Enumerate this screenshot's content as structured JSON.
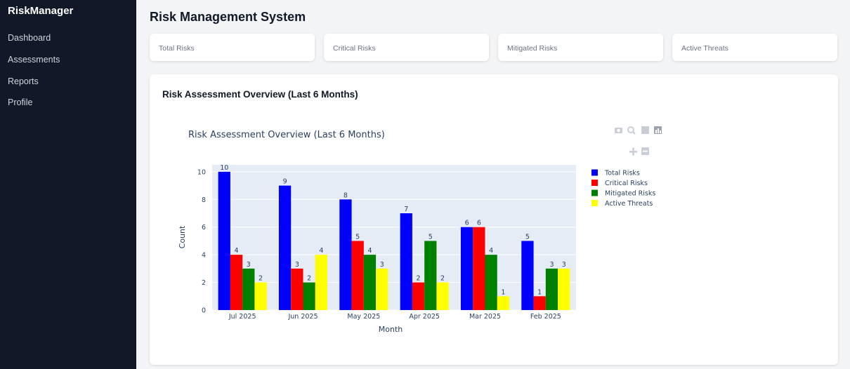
{
  "sidebar": {
    "brand": "RiskManager",
    "items": [
      {
        "label": "Dashboard"
      },
      {
        "label": "Assessments"
      },
      {
        "label": "Reports"
      },
      {
        "label": "Profile"
      }
    ]
  },
  "header": {
    "title": "Risk Management System"
  },
  "stats": [
    {
      "label": "Total Risks"
    },
    {
      "label": "Critical Risks"
    },
    {
      "label": "Mitigated Risks"
    },
    {
      "label": "Active Threats"
    }
  ],
  "chart_card": {
    "title": "Risk Assessment Overview (Last 6 Months)"
  },
  "chart_data": {
    "type": "bar",
    "title": "Risk Assessment Overview (Last 6 Months)",
    "xlabel": "Month",
    "ylabel": "Count",
    "ylim": [
      0,
      10.5
    ],
    "yticks": [
      0,
      2,
      4,
      6,
      8,
      10
    ],
    "grid": true,
    "legend_position": "top-right",
    "categories": [
      "Jul 2025",
      "Jun 2025",
      "May 2025",
      "Apr 2025",
      "Mar 2025",
      "Feb 2025"
    ],
    "series": [
      {
        "name": "Total Risks",
        "color": "#0000ff",
        "values": [
          10,
          9,
          8,
          7,
          6,
          5
        ]
      },
      {
        "name": "Critical Risks",
        "color": "#ff0000",
        "values": [
          4,
          3,
          5,
          2,
          6,
          1
        ]
      },
      {
        "name": "Mitigated Risks",
        "color": "#008000",
        "values": [
          3,
          2,
          4,
          5,
          4,
          3
        ]
      },
      {
        "name": "Active Threats",
        "color": "#ffff00",
        "values": [
          2,
          4,
          3,
          2,
          1,
          3
        ]
      }
    ]
  },
  "colors": {
    "sidebar_bg": "#111827",
    "plot_bg": "#e5ecf6",
    "text": "#2a3f5f"
  }
}
